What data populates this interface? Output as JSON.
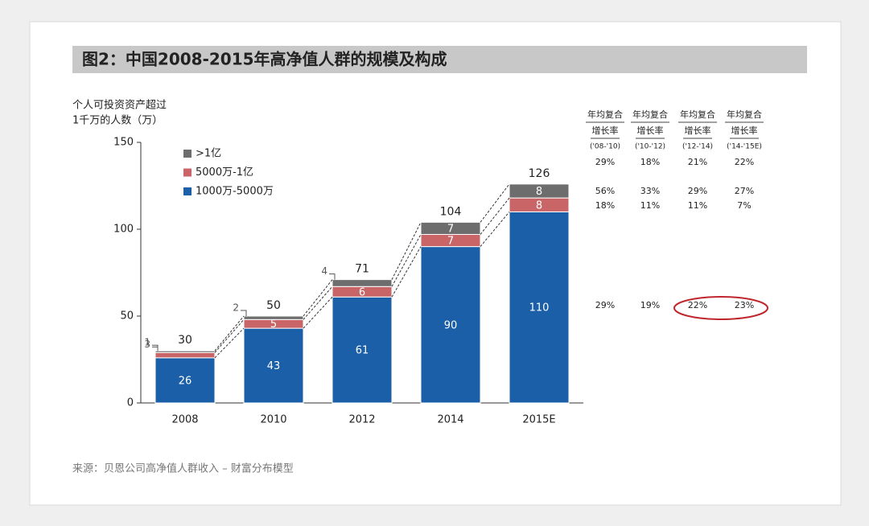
{
  "chart_data": {
    "type": "stacked_bar",
    "title": "图2：中国2008-2015年高净值人群的规模及构成",
    "y_label": [
      "个人可投资资产超过",
      "1千万的人数（万）"
    ],
    "source": "来源：贝恩公司高净值人群收入 – 财富分布模型",
    "categories": [
      "2008",
      "2010",
      "2012",
      "2014",
      "2015E"
    ],
    "series": [
      {
        "name": "1000万-5000万",
        "color": "#1a5fa8",
        "values": [
          26,
          43,
          61,
          90,
          110
        ]
      },
      {
        "name": "5000万-1亿",
        "color": "#c96566",
        "values": [
          3,
          5,
          6,
          7,
          8
        ]
      },
      {
        "name": ">1亿",
        "color": "#6d6d6d",
        "values": [
          1,
          2,
          4,
          7,
          8
        ]
      }
    ],
    "totals": [
      30,
      50,
      71,
      104,
      126
    ],
    "ylim": [
      0,
      150
    ],
    "yticks": [
      0,
      50,
      100,
      150
    ],
    "cagr_table": {
      "headers": [
        {
          "line1": "年均复合",
          "line2": "增长率",
          "period": "('08-'10)"
        },
        {
          "line1": "年均复合",
          "line2": "增长率",
          "period": "('10-'12)"
        },
        {
          "line1": "年均复合",
          "line2": "增长率",
          "period": "('12-'14)"
        },
        {
          "line1": "年均复合",
          "line2": "增长率",
          "period": "('14-'15E)"
        }
      ],
      "rows": [
        [
          "29%",
          "18%",
          "21%",
          "22%"
        ],
        [
          "56%",
          "33%",
          "29%",
          "27%"
        ],
        [
          "18%",
          "11%",
          "11%",
          "7%"
        ],
        [
          "29%",
          "19%",
          "22%",
          "23%"
        ]
      ]
    }
  }
}
